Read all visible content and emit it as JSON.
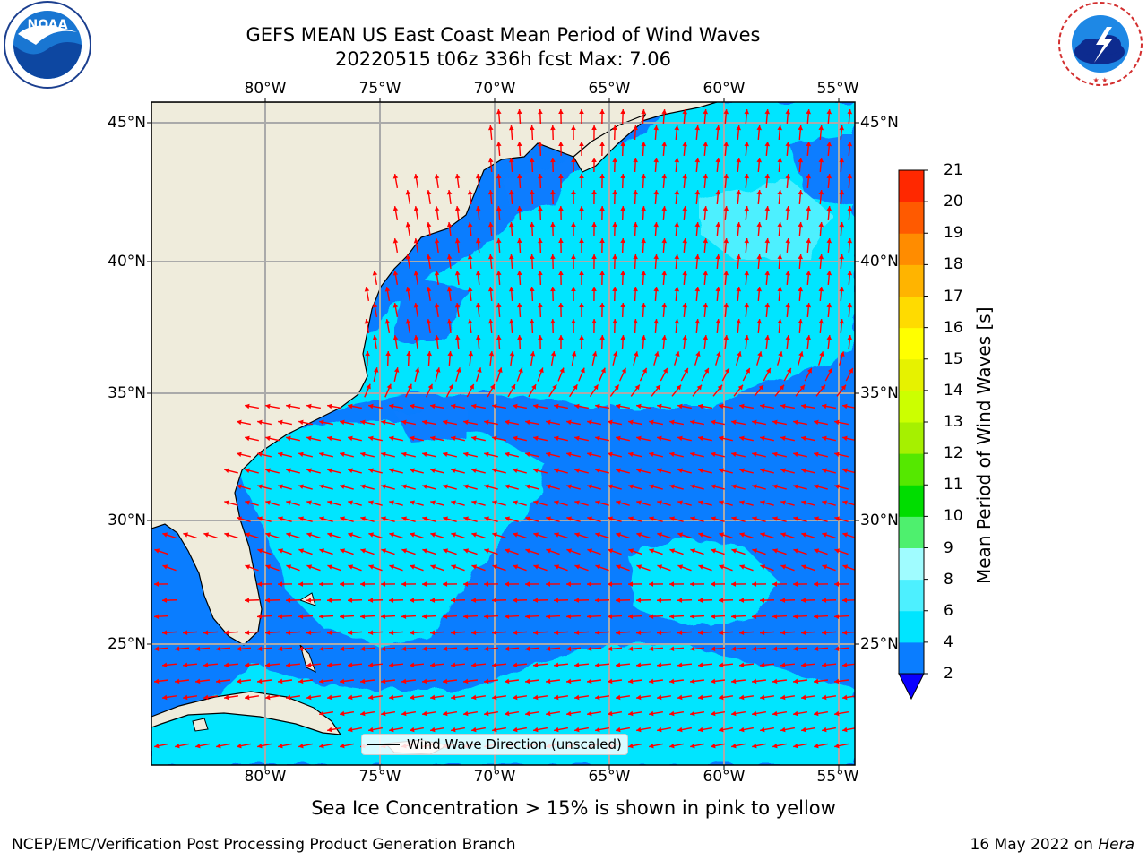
{
  "header": {
    "title_line1": "GEFS MEAN US East Coast Mean Period of Wind Waves",
    "title_line2": "20220515 t06z 336h fcst   Max: 7.06"
  },
  "logos": {
    "noaa_text": "NOAA",
    "noaa_ring_text": "NATIONAL OCEANIC AND ATMOSPHERIC ADMINISTRATION · U.S. DEPARTMENT OF COMMERCE",
    "nws_ring_text": "NATIONAL WEATHER SERVICE"
  },
  "map": {
    "region": "US East Coast / Western North Atlantic",
    "lon_range": [
      -85,
      -54.2
    ],
    "lat_range": [
      20.5,
      46
    ],
    "lon_ticks": [
      "80°W",
      "75°W",
      "70°W",
      "65°W",
      "60°W",
      "55°W"
    ],
    "lat_ticks": [
      "45°N",
      "40°N",
      "35°N",
      "30°N",
      "25°N"
    ],
    "grid": true,
    "land_color": "#efecdc",
    "arrow_color": "#ff0000",
    "legend_label": "Wind Wave Direction (unscaled)",
    "legend_placement": "bottom-center"
  },
  "colorbar": {
    "label": "Mean Period of Wind Waves [s]",
    "ticks": [
      "2",
      "4",
      "6",
      "8",
      "9",
      "10",
      "11",
      "12",
      "13",
      "14",
      "15",
      "16",
      "17",
      "18",
      "19",
      "20",
      "21"
    ],
    "colors": [
      "#0a7dff",
      "#00e5ff",
      "#4df0ff",
      "#a0fcff",
      "#4ef06e",
      "#00dd00",
      "#55e800",
      "#a6f000",
      "#ccff00",
      "#e6f200",
      "#ffff00",
      "#ffdb00",
      "#ffb400",
      "#ff8c00",
      "#ff5a00",
      "#ff2800"
    ],
    "extend_min_color": "#0a00ff",
    "top_color": "#ff0000"
  },
  "chart_data": {
    "type": "heatmap",
    "title": "GEFS MEAN US East Coast Mean Period of Wind Waves",
    "subtitle": "20220515 t06z 336h fcst   Max: 7.06",
    "variable": "Mean Period of Wind Waves [s]",
    "max_value": 7.06,
    "levels": [
      2,
      4,
      6,
      8,
      9,
      10,
      11,
      12,
      13,
      14,
      15,
      16,
      17,
      18,
      19,
      20,
      21
    ]
  },
  "footer": {
    "sea_ice_note": "Sea Ice Concentration > 15% is shown in pink to yellow",
    "branch": "NCEP/EMC/Verification Post Processing Product Generation Branch",
    "date": "16 May 2022 on ",
    "machine": "Hera"
  }
}
